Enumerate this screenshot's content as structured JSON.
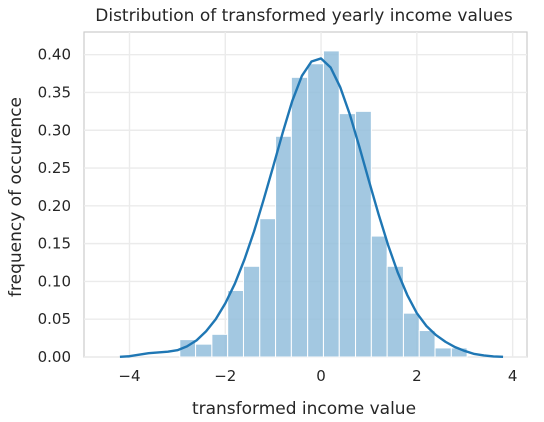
{
  "chart_data": {
    "type": "histogram",
    "title": "Distribution of transformed yearly income values",
    "xlabel": "transformed income value",
    "ylabel": "frequency of occurence",
    "xlim": [
      -4.95,
      4.3
    ],
    "ylim": [
      0,
      0.43
    ],
    "x_ticks": [
      -4,
      -2,
      0,
      2,
      4
    ],
    "x_tick_labels": [
      "−4",
      "−2",
      "0",
      "2",
      "4"
    ],
    "y_ticks": [
      0.0,
      0.05,
      0.1,
      0.15,
      0.2,
      0.25,
      0.3,
      0.35,
      0.4
    ],
    "y_tick_labels": [
      "0.00",
      "0.05",
      "0.10",
      "0.15",
      "0.20",
      "0.25",
      "0.30",
      "0.35",
      "0.40"
    ],
    "grid": true,
    "bar_color": "#8fbcdb",
    "line_color": "#1f77b4",
    "bins": [
      {
        "x0": -2.95,
        "x1": -2.62,
        "value": 0.023
      },
      {
        "x0": -2.62,
        "x1": -2.28,
        "value": 0.017
      },
      {
        "x0": -2.28,
        "x1": -1.95,
        "value": 0.03
      },
      {
        "x0": -1.95,
        "x1": -1.62,
        "value": 0.088
      },
      {
        "x0": -1.62,
        "x1": -1.28,
        "value": 0.12
      },
      {
        "x0": -1.28,
        "x1": -0.95,
        "value": 0.183
      },
      {
        "x0": -0.95,
        "x1": -0.62,
        "value": 0.292
      },
      {
        "x0": -0.62,
        "x1": -0.28,
        "value": 0.37
      },
      {
        "x0": -0.28,
        "x1": 0.05,
        "value": 0.388
      },
      {
        "x0": 0.05,
        "x1": 0.38,
        "value": 0.405
      },
      {
        "x0": 0.38,
        "x1": 0.72,
        "value": 0.322
      },
      {
        "x0": 0.72,
        "x1": 1.05,
        "value": 0.325
      },
      {
        "x0": 1.05,
        "x1": 1.38,
        "value": 0.16
      },
      {
        "x0": 1.38,
        "x1": 1.72,
        "value": 0.12
      },
      {
        "x0": 1.72,
        "x1": 2.05,
        "value": 0.058
      },
      {
        "x0": 2.05,
        "x1": 2.38,
        "value": 0.035
      },
      {
        "x0": 2.38,
        "x1": 2.72,
        "value": 0.012
      },
      {
        "x0": 2.72,
        "x1": 3.05,
        "value": 0.012
      }
    ],
    "kde": {
      "x": [
        -4.2,
        -4.0,
        -3.8,
        -3.6,
        -3.4,
        -3.2,
        -3.0,
        -2.8,
        -2.6,
        -2.4,
        -2.2,
        -2.0,
        -1.8,
        -1.6,
        -1.4,
        -1.2,
        -1.0,
        -0.8,
        -0.6,
        -0.4,
        -0.2,
        0.0,
        0.2,
        0.4,
        0.6,
        0.8,
        1.0,
        1.2,
        1.4,
        1.6,
        1.8,
        2.0,
        2.2,
        2.4,
        2.6,
        2.8,
        3.0,
        3.2,
        3.4,
        3.6,
        3.8
      ],
      "y": [
        0.0003,
        0.001,
        0.003,
        0.005,
        0.006,
        0.007,
        0.009,
        0.014,
        0.022,
        0.034,
        0.05,
        0.071,
        0.097,
        0.129,
        0.166,
        0.208,
        0.252,
        0.297,
        0.339,
        0.372,
        0.391,
        0.395,
        0.383,
        0.357,
        0.321,
        0.278,
        0.233,
        0.189,
        0.148,
        0.112,
        0.082,
        0.058,
        0.041,
        0.029,
        0.02,
        0.013,
        0.008,
        0.004,
        0.002,
        0.0007,
        0.0002
      ]
    }
  }
}
